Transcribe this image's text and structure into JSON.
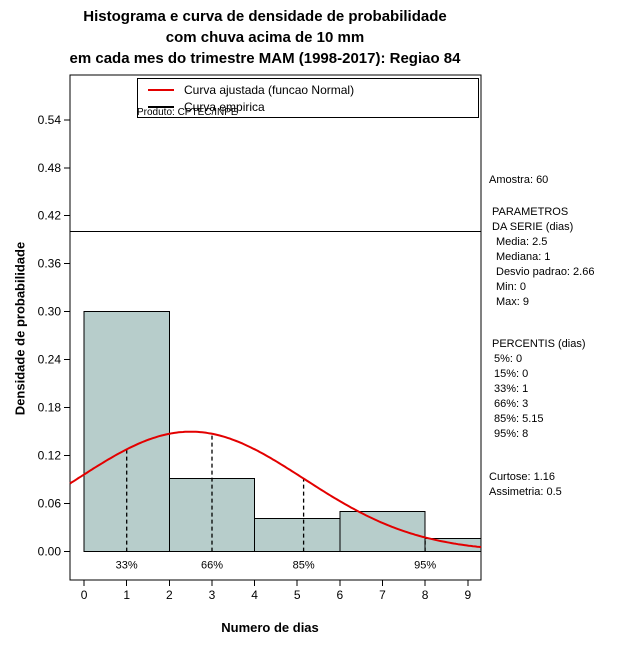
{
  "title": {
    "line1": "Histograma e curva de densidade de probabilidade",
    "line2": "com chuva acima de 10 mm",
    "line3": "em cada mes do trimestre MAM (1998-2017): Regiao 84"
  },
  "chart_data": {
    "type": "bar",
    "subtype": "histogram-with-fitted-normal-density-curve",
    "title": "Histograma e curva de densidade de probabilidade com chuva acima de 10 mm em cada mes do trimestre MAM (1998-2017): Regiao 84",
    "xlabel": "Numero de dias",
    "ylabel": "Densidade de probabilidade",
    "xlim": [
      -0.33,
      9.31
    ],
    "ylim": [
      -0.0355,
      0.596
    ],
    "x_ticks": [
      {
        "v": 0,
        "label": "0"
      },
      {
        "v": 1,
        "label": "1"
      },
      {
        "v": 2,
        "label": "2"
      },
      {
        "v": 3,
        "label": "3"
      },
      {
        "v": 4,
        "label": "4"
      },
      {
        "v": 5,
        "label": "5"
      },
      {
        "v": 6,
        "label": "6"
      },
      {
        "v": 7,
        "label": "7"
      },
      {
        "v": 8,
        "label": "8"
      },
      {
        "v": 9,
        "label": "9"
      }
    ],
    "y_ticks": [
      {
        "v": 0,
        "label": "0.00"
      },
      {
        "v": 0.06,
        "label": "0.06"
      },
      {
        "v": 0.12,
        "label": "0.12"
      },
      {
        "v": 0.18,
        "label": "0.18"
      },
      {
        "v": 0.24,
        "label": "0.24"
      },
      {
        "v": 0.3,
        "label": "0.30"
      },
      {
        "v": 0.36,
        "label": "0.36"
      },
      {
        "v": 0.42,
        "label": "0.42"
      },
      {
        "v": 0.48,
        "label": "0.48"
      },
      {
        "v": 0.54,
        "label": "0.54"
      }
    ],
    "histogram": {
      "breaks": [
        0,
        2,
        4,
        6,
        8,
        10
      ],
      "densities": [
        0.3,
        0.0917,
        0.0417,
        0.05,
        0.0167
      ],
      "fill": "#b7cdcb"
    },
    "normal_curve": {
      "mean": 2.5,
      "sd": 2.66,
      "color": "#e30000"
    },
    "percentile_lines": [
      {
        "label": "33%",
        "x": 1
      },
      {
        "label": "66%",
        "x": 3
      },
      {
        "label": "85%",
        "x": 5.15
      },
      {
        "label": "95%",
        "x": 8
      }
    ],
    "reference_line_y": 0.4,
    "watermark": "Produto: CPTEC/INPE"
  },
  "legend": {
    "items": [
      {
        "label": "Curva ajustada (funcao Normal)",
        "color": "#e30000"
      },
      {
        "label": "Curva empirica",
        "color": "#000000"
      }
    ]
  },
  "stats_panel": {
    "sample": "Amostra: 60",
    "series_header1": "PARAMETROS",
    "series_header2": "DA SERIE (dias)",
    "series_items": [
      "Media: 2.5",
      "Mediana: 1",
      "Desvio padrao: 2.66",
      "Min: 0",
      "Max: 9"
    ],
    "percentis_header": "PERCENTIS (dias)",
    "percentis_items": [
      "5%: 0",
      "15%: 0",
      "33%: 1",
      "66%: 3",
      "85%: 5.15",
      "95%: 8"
    ],
    "extra_items": [
      "Curtose: 1.16",
      "Assimetria: 0.5"
    ]
  }
}
